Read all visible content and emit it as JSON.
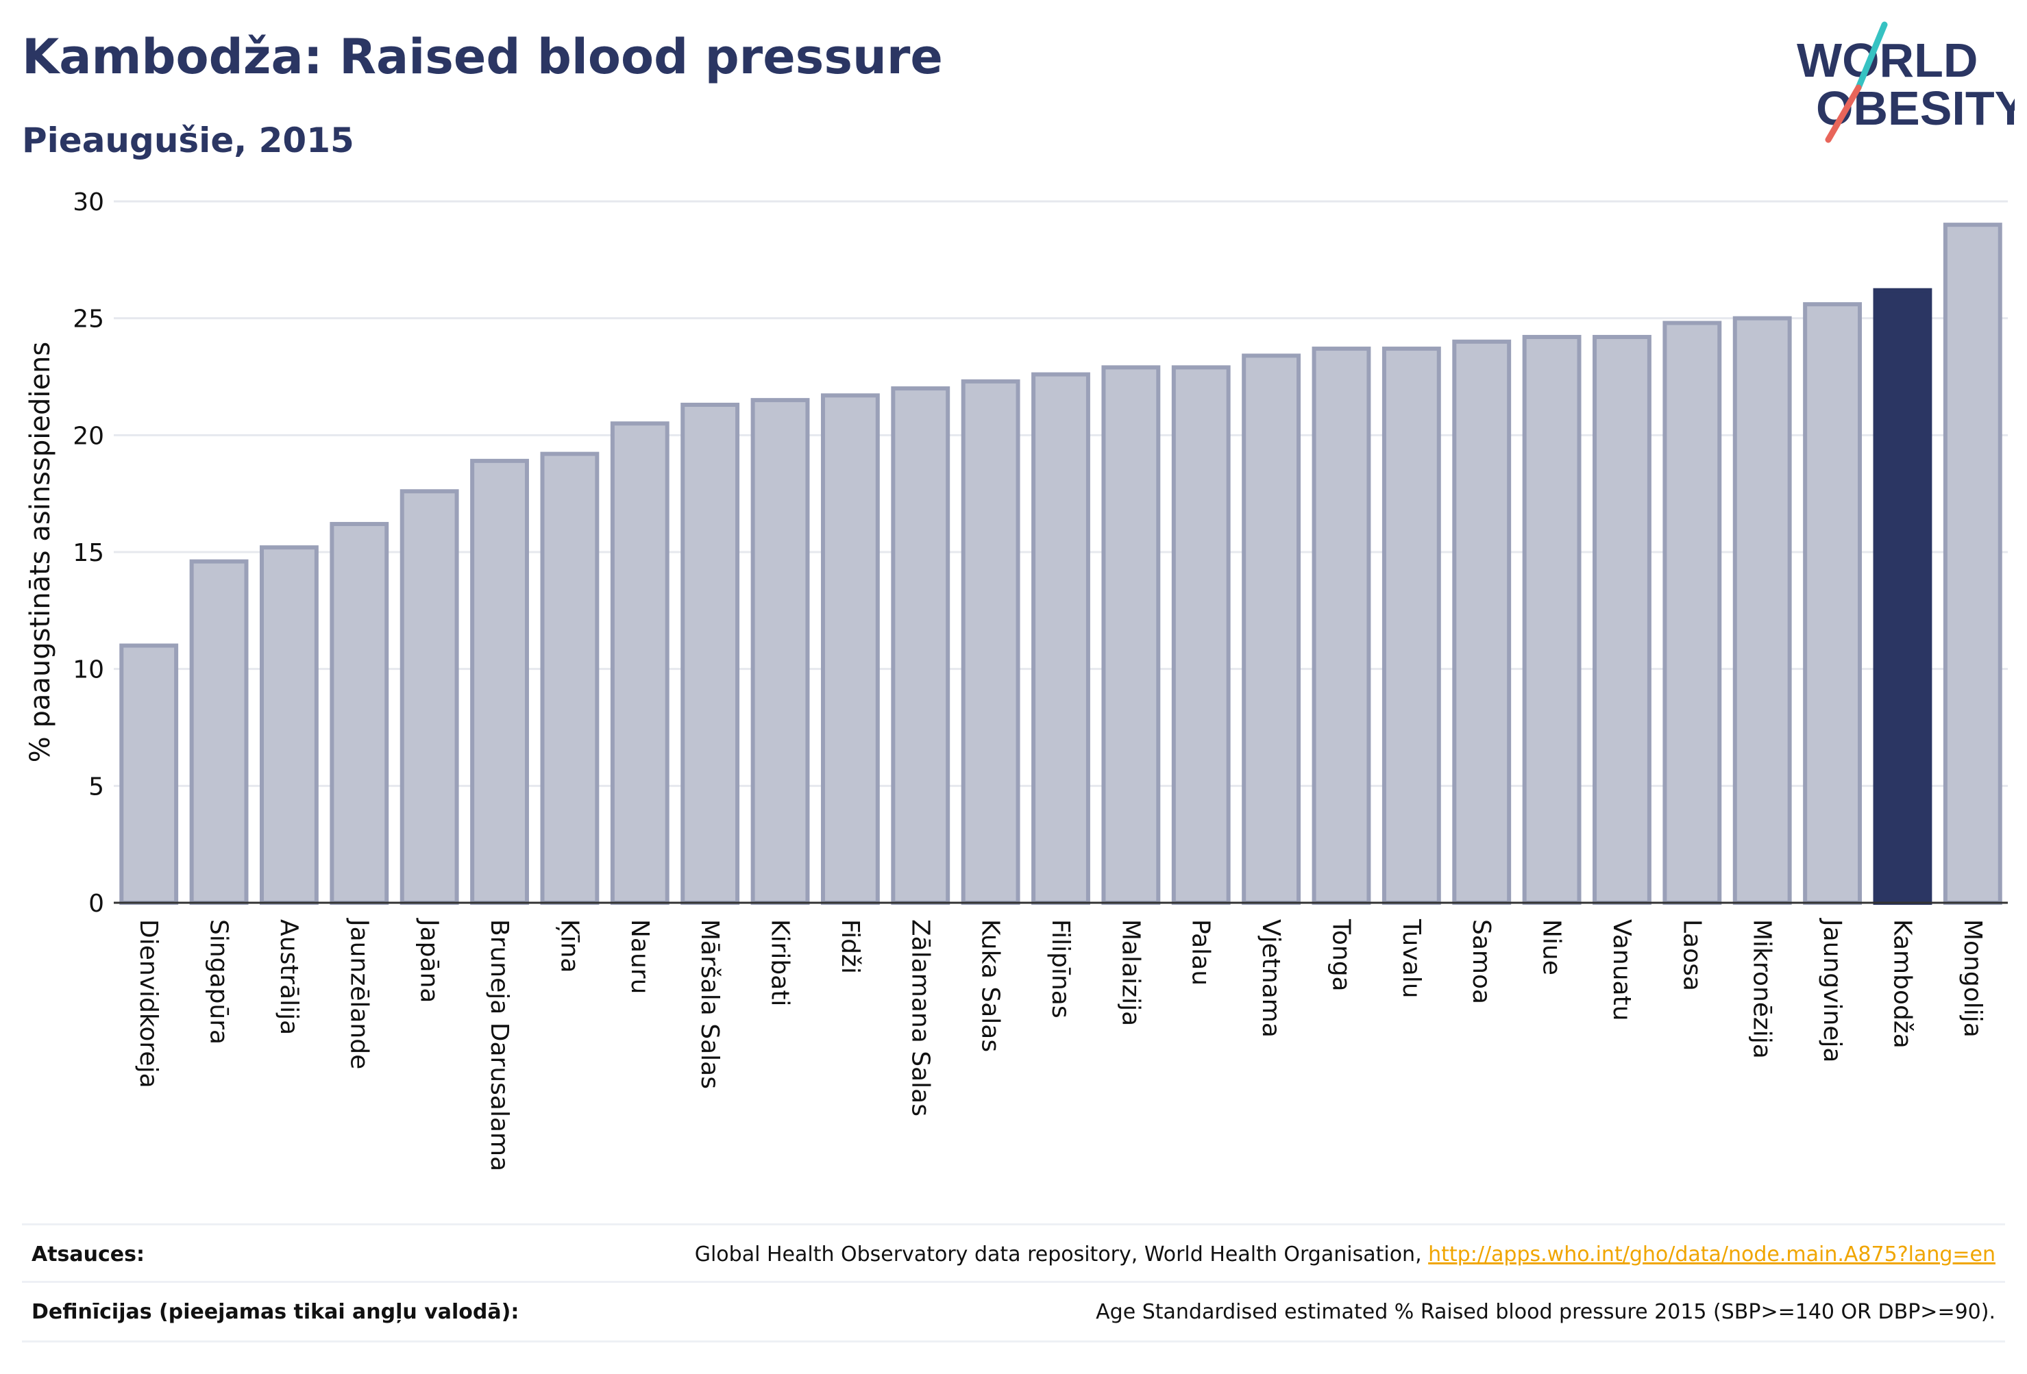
{
  "header": {
    "title": "Kambodža: Raised blood pressure",
    "subtitle": "Pieaugušie, 2015"
  },
  "logo": {
    "line1": "WORLD",
    "line2": "OBESITY",
    "slash_colors": [
      "#36c2c2",
      "#e8655a"
    ]
  },
  "colors": {
    "bar": "#bfc3d1",
    "bar_stroke": "#9aa0b8",
    "highlight": "#2b3663",
    "grid": "#e6e8ee",
    "text": "#2b3663"
  },
  "chart_data": {
    "type": "bar",
    "ylabel": "% paaugstināts asinsspiediens",
    "ylim": [
      0,
      30
    ],
    "yticks": [
      0,
      5,
      10,
      15,
      20,
      25,
      30
    ],
    "grid": true,
    "highlight": "Kambodža",
    "categories": [
      "Dienvidkoreja",
      "Singapūra",
      "Austrālija",
      "Jaunzēlande",
      "Japāna",
      "Bruneja Darusalama",
      "Ķīna",
      "Nauru",
      "Māršala Salas",
      "Kiribati",
      "Fidži",
      "Zālamana Salas",
      "Kuka Salas",
      "Filipīnas",
      "Malaizija",
      "Palau",
      "Vjetnama",
      "Tonga",
      "Tuvalu",
      "Samoa",
      "Niue",
      "Vanuatu",
      "Laosa",
      "Mikronēzija",
      "Jaungvineja",
      "Kambodža",
      "Mongolija"
    ],
    "values": [
      11.0,
      14.6,
      15.2,
      16.2,
      17.6,
      18.9,
      19.2,
      20.5,
      21.3,
      21.5,
      21.7,
      22.0,
      22.3,
      22.6,
      22.9,
      22.9,
      23.4,
      23.7,
      23.7,
      24.0,
      24.2,
      24.2,
      24.8,
      25.0,
      25.6,
      26.2,
      29.0
    ]
  },
  "footer": {
    "sources_label": "Atsauces:",
    "sources_text": "Global Health Observatory data repository, World Health Organisation, ",
    "sources_link": "http://apps.who.int/gho/data/node.main.A875?lang=en",
    "definitions_label": "Definīcijas (pieejamas tikai angļu valodā):",
    "definitions_text": "Age Standardised estimated % Raised blood pressure 2015 (SBP>=140 OR DBP>=90)."
  }
}
